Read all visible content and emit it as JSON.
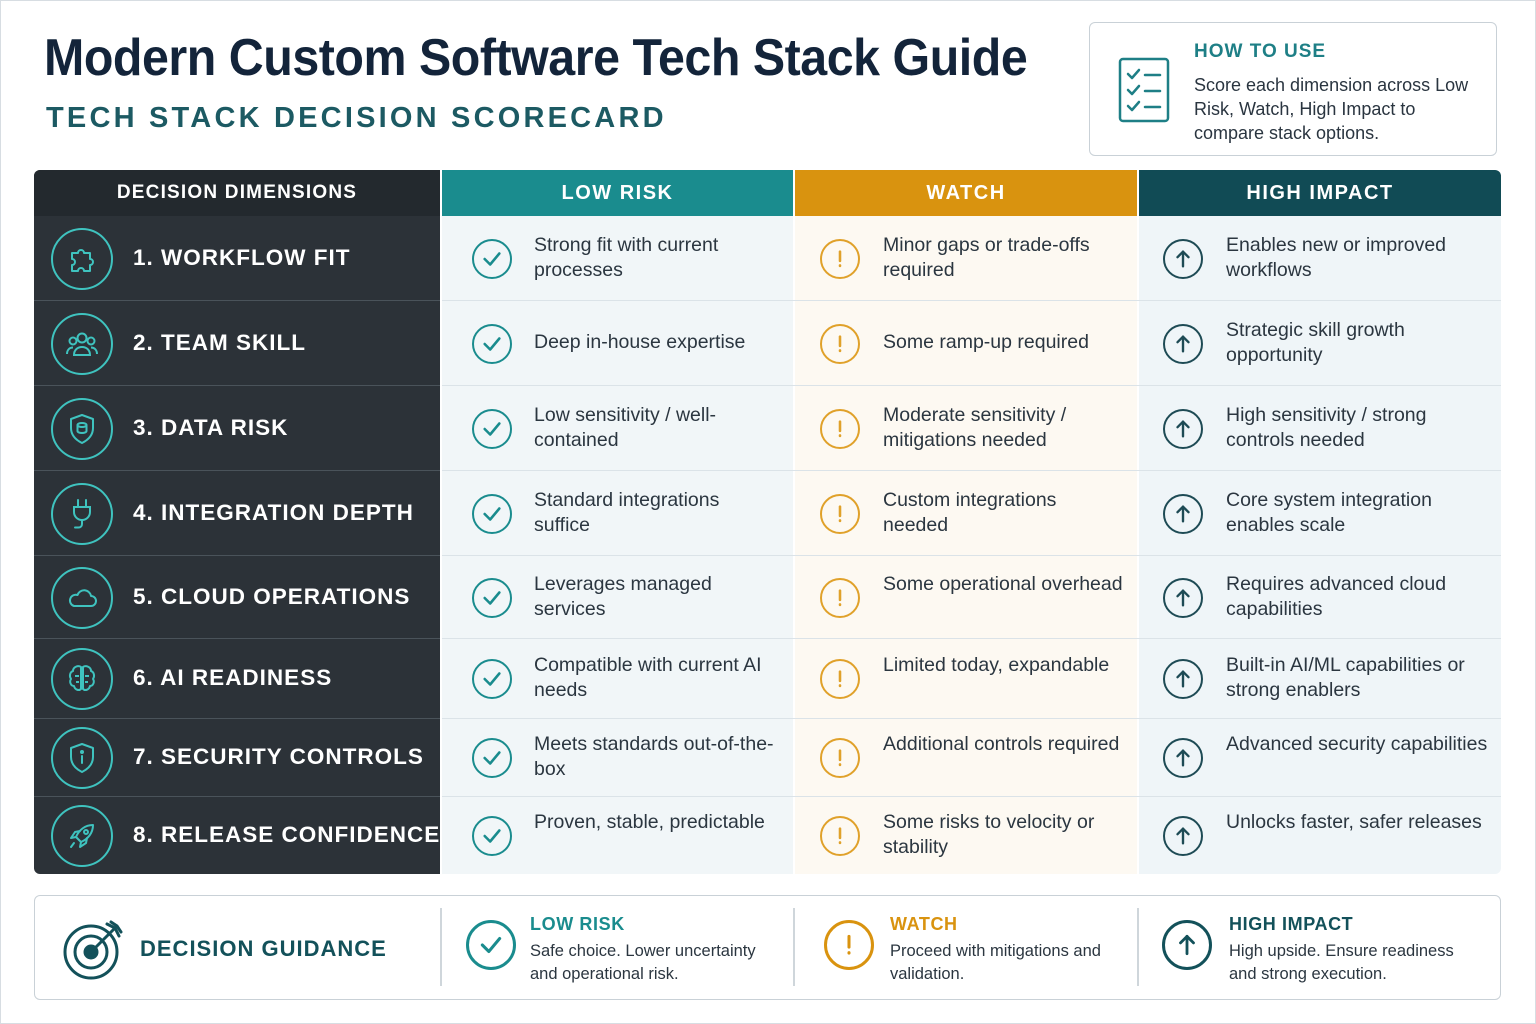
{
  "header": {
    "title": "Modern Custom Software Tech Stack Guide",
    "subtitle": "TECH STACK DECISION SCORECARD"
  },
  "how_to_use": {
    "icon": "checklist-icon",
    "title": "HOW TO USE",
    "text": "Score each dimension across Low Risk, Watch, High Impact to compare stack options."
  },
  "table": {
    "headers": {
      "dimensions": "DECISION DIMENSIONS",
      "low_risk": "LOW RISK",
      "watch": "WATCH",
      "high_impact": "HIGH IMPACT"
    },
    "rows": [
      {
        "label": "1. WORKFLOW FIT",
        "icon": "puzzle-icon",
        "low": "Strong fit with current processes",
        "watch": "Minor gaps or trade-offs required",
        "high": "Enables new or improved workflows"
      },
      {
        "label": "2. TEAM SKILL",
        "icon": "team-icon",
        "low": "Deep in-house expertise",
        "watch": "Some ramp-up required",
        "high": "Strategic skill growth opportunity"
      },
      {
        "label": "3. DATA RISK",
        "icon": "shield-data-icon",
        "low": "Low sensitivity / well-contained",
        "watch": "Moderate sensitivity / mitigations needed",
        "high": "High sensitivity / strong controls needed"
      },
      {
        "label": "4. INTEGRATION DEPTH",
        "icon": "plug-icon",
        "low": "Standard integrations suffice",
        "watch": "Custom integrations needed",
        "high": "Core system integration enables scale"
      },
      {
        "label": "5. CLOUD OPERATIONS",
        "icon": "cloud-icon",
        "low": "Leverages managed services",
        "watch": "Some operational overhead",
        "high": "Requires advanced cloud capabilities"
      },
      {
        "label": "6. AI READINESS",
        "icon": "brain-icon",
        "low": "Compatible with current AI needs",
        "watch": "Limited today, expandable",
        "high": "Built-in AI/ML capabilities or strong enablers"
      },
      {
        "label": "7. SECURITY CONTROLS",
        "icon": "security-shield-icon",
        "low": "Meets standards out-of-the-box",
        "watch": "Additional controls required",
        "high": "Advanced security capabilities"
      },
      {
        "label": "8. RELEASE CONFIDENCE",
        "icon": "rocket-icon",
        "low": "Proven, stable, predictable",
        "watch": "Some risks to velocity or stability",
        "high": "Unlocks faster, safer releases"
      }
    ]
  },
  "guidance": {
    "icon": "target-icon",
    "label": "DECISION GUIDANCE",
    "items": [
      {
        "title": "LOW RISK",
        "text": "Safe choice. Lower uncertainty and operational risk.",
        "icon": "check-circle-icon",
        "color": "#1a8c8e"
      },
      {
        "title": "WATCH",
        "text": "Proceed with mitigations and validation.",
        "icon": "exclamation-circle-icon",
        "color": "#d9930f"
      },
      {
        "title": "HIGH IMPACT",
        "text": "High upside. Ensure readiness and strong execution.",
        "icon": "arrow-up-circle-icon",
        "color": "#13515a"
      }
    ]
  },
  "colors": {
    "low_risk": "#1a8c8e",
    "watch": "#d9930f",
    "high_impact": "#114b55",
    "dimensions_bg": "#2c3238",
    "accent_teal": "#3fc3bf"
  }
}
